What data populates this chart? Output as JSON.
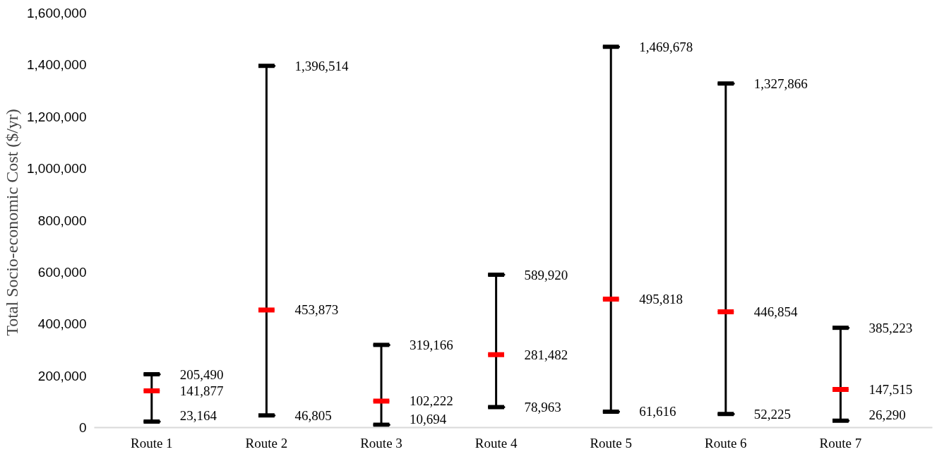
{
  "chart_data": {
    "type": "box",
    "ylabel": "Total Socio-economic Cost  ($/yr)",
    "categories": [
      "Route 1",
      "Route 2",
      "Route 3",
      "Route 4",
      "Route 5",
      "Route 6",
      "Route 7"
    ],
    "series": [
      {
        "color": "#ff0000",
        "boxes": [
          {
            "low": 23164,
            "q1": 141877,
            "median": 141877,
            "q3": 141877,
            "high": 205490
          },
          {
            "low": 46805,
            "q1": 453873,
            "median": 453873,
            "q3": 453873,
            "high": 1396514
          },
          {
            "low": 10694,
            "q1": 102222,
            "median": 102222,
            "q3": 102222,
            "high": 319166
          },
          {
            "low": 78963,
            "q1": 281482,
            "median": 281482,
            "q3": 281482,
            "high": 589920
          },
          {
            "low": 61616,
            "q1": 495818,
            "median": 495818,
            "q3": 495818,
            "high": 1469678
          },
          {
            "low": 52225,
            "q1": 446854,
            "median": 446854,
            "q3": 446854,
            "high": 1327866
          },
          {
            "low": 26290,
            "q1": 147515,
            "median": 147515,
            "q3": 147515,
            "high": 385223
          }
        ]
      }
    ],
    "annotations": [
      {
        "text": "23,164",
        "x": "Route 1",
        "y": 23164
      },
      {
        "text": "141,877",
        "x": "Route 1",
        "y": 141877
      },
      {
        "text": "205,490",
        "x": "Route 1",
        "y": 205490
      },
      {
        "text": "46,805",
        "x": "Route 2",
        "y": 46805
      },
      {
        "text": "453,873",
        "x": "Route 2",
        "y": 453873
      },
      {
        "text": "1,396,514",
        "x": "Route 2",
        "y": 1396514
      },
      {
        "text": "10,694",
        "x": "Route 3",
        "y": 10694
      },
      {
        "text": "102,222",
        "x": "Route 3",
        "y": 102222
      },
      {
        "text": "319,166",
        "x": "Route 3",
        "y": 319166
      },
      {
        "text": "78,963",
        "x": "Route 4",
        "y": 78963
      },
      {
        "text": "281,482",
        "x": "Route 4",
        "y": 281482
      },
      {
        "text": "589,920",
        "x": "Route 4",
        "y": 589920
      },
      {
        "text": "61,616",
        "x": "Route 5",
        "y": 61616
      },
      {
        "text": "495,818",
        "x": "Route 5",
        "y": 495818
      },
      {
        "text": "1,469,678",
        "x": "Route 5",
        "y": 1469678
      },
      {
        "text": "52,225",
        "x": "Route 6",
        "y": 52225
      },
      {
        "text": "446,854",
        "x": "Route 6",
        "y": 446854
      },
      {
        "text": "1,327,866",
        "x": "Route 6",
        "y": 1327866
      },
      {
        "text": "26,290",
        "x": "Route 7",
        "y": 26290
      },
      {
        "text": "147,515",
        "x": "Route 7",
        "y": 147515
      },
      {
        "text": "385,223",
        "x": "Route 7",
        "y": 385223
      }
    ],
    "ylim": [
      0,
      1600000
    ],
    "yticks": [
      {
        "value": 0,
        "label": "0"
      },
      {
        "value": 200000,
        "label": "200,000"
      },
      {
        "value": 400000,
        "label": "400,000"
      },
      {
        "value": 600000,
        "label": "600,000"
      },
      {
        "value": 800000,
        "label": "800,000"
      },
      {
        "value": 1000000,
        "label": "1,000,000"
      },
      {
        "value": 1200000,
        "label": "1,200,000"
      },
      {
        "value": 1400000,
        "label": "1,400,000"
      },
      {
        "value": 1600000,
        "label": "1,600,000"
      }
    ]
  }
}
